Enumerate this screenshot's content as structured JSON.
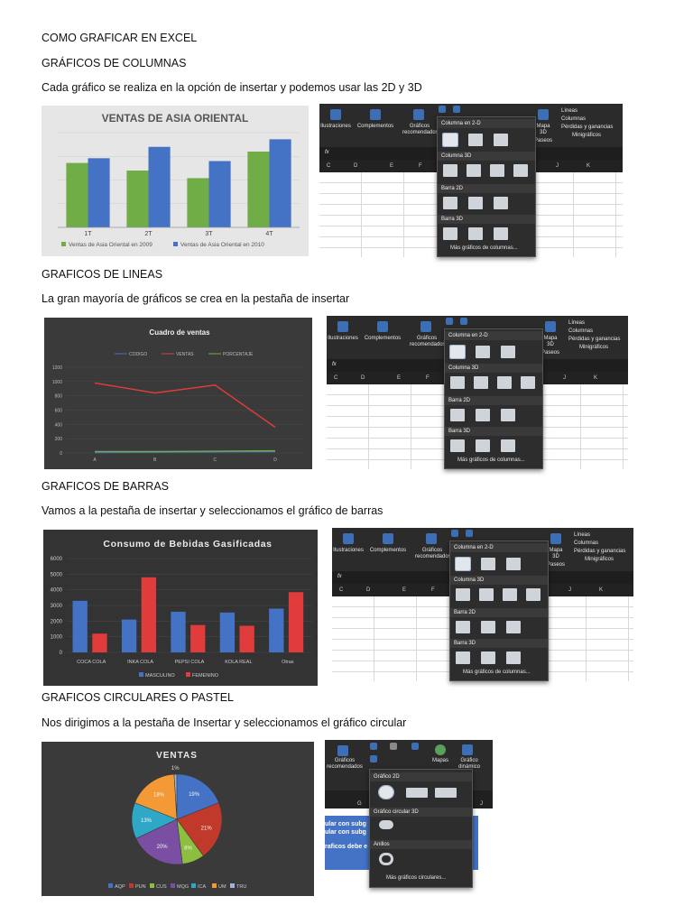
{
  "heading": "COMO GRAFICAR EN EXCEL",
  "sections": [
    {
      "title": "GRÁFICOS DE COLUMNAS",
      "desc": "Cada gráfico se realiza en la opción de insertar y podemos usar las 2D y 3D"
    },
    {
      "title": "GRAFICOS DE LINEAS",
      "desc": "La gran mayoría de gráficos se crea en la pestaña de insertar"
    },
    {
      "title": "GRAFICOS DE BARRAS",
      "desc": "Vamos a la pestaña de insertar y seleccionamos el gráfico de barras"
    },
    {
      "title": "GRAFICOS CIRCULARES O PASTEL",
      "desc": " Nos dirigimos a la pestaña de Insertar y seleccionamos el gráfico circular"
    }
  ],
  "ribbon": {
    "ilustraciones": "Ilustraciones",
    "complementos": "Complementos",
    "graficos_recomendados": "Gráficos recomendados",
    "mapas_3d": "Mapa 3D",
    "paseos": "Paseos",
    "lineas": "Líneas",
    "columnas": "Columnas",
    "perdidas": "Pérdidas y ganancias",
    "minigraficos": "Minigráficos",
    "fx": "fx",
    "cols_a": [
      "C",
      "D",
      "E",
      "F",
      "",
      "",
      "",
      "J",
      "K"
    ],
    "menu": {
      "col2d": "Columna en 2-D",
      "col3d": "Columna 3D",
      "barra2d": "Barra 2D",
      "barra3d": "Barra 3D",
      "more": "Más gráficos de columnas..."
    }
  },
  "pie_ribbon": {
    "graficos_recomendados": "Gráficos recomendados",
    "mapas": "Mapas",
    "grafico_dinamico": "Gráfico dinámico",
    "g2d": "Gráfico 2D",
    "g3d": "Gráfico circular 3D",
    "anillos": "Anillos",
    "more": "Más gráficos circulares...",
    "cols": [
      "G",
      "",
      "",
      "J"
    ],
    "blue_lines": [
      "ular con subg",
      "ular con subg",
      "raficos debe e"
    ]
  },
  "chart_data": [
    {
      "type": "bar",
      "title": "VENTAS DE ASIA ORIENTAL",
      "categories": [
        "1T",
        "2T",
        "3T",
        "4T"
      ],
      "series": [
        {
          "name": "Ventas de Asia Oriental en 2009",
          "values": [
            68,
            60,
            52,
            80
          ],
          "color": "#70ad47"
        },
        {
          "name": "Ventas de Asia Oriental en 2010",
          "values": [
            73,
            85,
            70,
            93
          ],
          "color": "#4472c4"
        }
      ],
      "ylim": [
        0,
        100
      ]
    },
    {
      "type": "line",
      "title": "Cuadro de ventas",
      "categories": [
        "A",
        "B",
        "C",
        "D"
      ],
      "yticks": [
        "0",
        "200",
        "400",
        "600",
        "800",
        "1000",
        "1200"
      ],
      "ylim": [
        0,
        1200
      ],
      "series": [
        {
          "name": "CODIGO",
          "values": [
            5,
            10,
            15,
            20
          ],
          "color": "#4472c4"
        },
        {
          "name": "VENTAS",
          "values": [
            980,
            840,
            950,
            360
          ],
          "color": "#e03c3c"
        },
        {
          "name": "PORCENTAJE",
          "values": [
            20,
            20,
            25,
            30
          ],
          "color": "#70ad47"
        }
      ]
    },
    {
      "type": "bar",
      "title": "Consumo de Bebidas Gasificadas",
      "categories": [
        "COCA COLA",
        "INKA COLA",
        "PEPSI COLA",
        "KOLA REAL",
        "Otras"
      ],
      "yticks": [
        "0",
        "1000",
        "2000",
        "3000",
        "4000",
        "5000",
        "6000"
      ],
      "ylim": [
        0,
        6000
      ],
      "series": [
        {
          "name": "MASCULINO",
          "values": [
            3300,
            2100,
            2600,
            2550,
            2800
          ],
          "color": "#4472c4"
        },
        {
          "name": "FEMENINO",
          "values": [
            1200,
            4800,
            1750,
            1700,
            3850
          ],
          "color": "#e03c3c"
        }
      ]
    },
    {
      "type": "pie",
      "title": "VENTAS",
      "slices": [
        {
          "name": "AQP",
          "value": 19,
          "label": "19%",
          "color": "#4472c4"
        },
        {
          "name": "PUN",
          "value": 21,
          "label": "21%",
          "color": "#c0392b"
        },
        {
          "name": "CUS",
          "value": 8,
          "label": "8%",
          "color": "#8cbf3f"
        },
        {
          "name": "MQG",
          "value": 20,
          "label": "20%",
          "color": "#7a4fa3"
        },
        {
          "name": "ICA",
          "value": 13,
          "label": "13%",
          "color": "#2fa8c7"
        },
        {
          "name": "UM",
          "value": 18,
          "label": "18%",
          "color": "#f39a36"
        },
        {
          "name": "TRU",
          "value": 1,
          "label": "1%",
          "color": "#9fb4dc"
        }
      ]
    }
  ]
}
